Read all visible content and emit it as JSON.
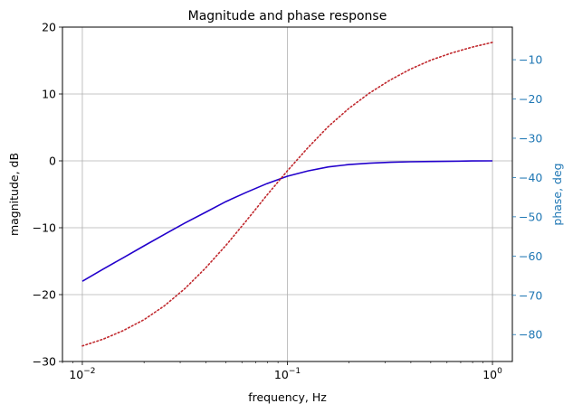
{
  "chart_data": {
    "type": "line",
    "title": "Magnitude and phase response",
    "xlabel": "frequency, Hz",
    "ylabel": "magnitude, dB",
    "y2label": "phase, deg",
    "xscale": "log",
    "xlim": [
      0.008,
      1.25
    ],
    "ylim": [
      -30,
      20
    ],
    "y2lim": [
      -86.85,
      -1.7
    ],
    "grid": true,
    "xticks": [
      {
        "value": 0.01,
        "base": "10",
        "exp": "−2"
      },
      {
        "value": 0.1,
        "base": "10",
        "exp": "−1"
      },
      {
        "value": 1,
        "base": "10",
        "exp": "0"
      }
    ],
    "yticks": [
      {
        "value": -30,
        "label": "−30"
      },
      {
        "value": -20,
        "label": "−20"
      },
      {
        "value": -10,
        "label": "−10"
      },
      {
        "value": 0,
        "label": "0"
      },
      {
        "value": 10,
        "label": "10"
      },
      {
        "value": 20,
        "label": "20"
      }
    ],
    "y2ticks": [
      {
        "value": -80,
        "label": "−80"
      },
      {
        "value": -70,
        "label": "−70"
      },
      {
        "value": -60,
        "label": "−60"
      },
      {
        "value": -50,
        "label": "−50"
      },
      {
        "value": -40,
        "label": "−40"
      },
      {
        "value": -30,
        "label": "−30"
      },
      {
        "value": -20,
        "label": "−20"
      },
      {
        "value": -10,
        "label": "−10"
      }
    ],
    "series": [
      {
        "axis": "left",
        "style": "solid",
        "color": "#2200cc",
        "x": [
          0.01,
          0.0126,
          0.0158,
          0.02,
          0.0251,
          0.0316,
          0.0398,
          0.0501,
          0.0631,
          0.0794,
          0.1,
          0.1259,
          0.1585,
          0.1995,
          0.2512,
          0.3162,
          0.3981,
          0.5012,
          0.631,
          0.7943,
          1.0
        ],
        "y": [
          -18.0,
          -16.2,
          -14.5,
          -12.7,
          -11.0,
          -9.3,
          -7.7,
          -6.1,
          -4.7,
          -3.4,
          -2.3,
          -1.5,
          -0.9,
          -0.55,
          -0.35,
          -0.22,
          -0.14,
          -0.09,
          -0.05,
          -0.02,
          0.0
        ]
      },
      {
        "axis": "right",
        "style": "dotted",
        "color": "#c0282d",
        "x": [
          0.01,
          0.0126,
          0.0158,
          0.02,
          0.0251,
          0.0316,
          0.0398,
          0.0501,
          0.0631,
          0.0794,
          0.1,
          0.1259,
          0.1585,
          0.1995,
          0.2512,
          0.3162,
          0.3981,
          0.5012,
          0.631,
          0.7943,
          1.0
        ],
        "y": [
          -82.9,
          -81.2,
          -79.0,
          -76.2,
          -72.7,
          -68.3,
          -63.1,
          -57.3,
          -51.0,
          -44.5,
          -38.3,
          -32.4,
          -27.0,
          -22.4,
          -18.5,
          -15.2,
          -12.4,
          -10.1,
          -8.3,
          -6.8,
          -5.6
        ]
      }
    ]
  }
}
